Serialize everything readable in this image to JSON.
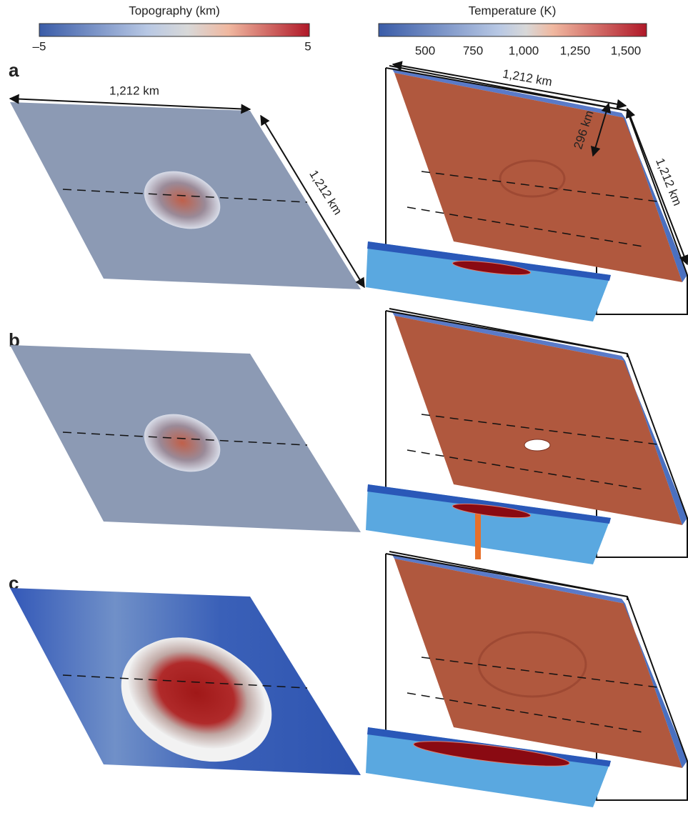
{
  "colorbars": [
    {
      "title": "Topography (km)",
      "tick_labels": [
        "–5",
        "5"
      ]
    },
    {
      "title": "Temperature (K)",
      "tick_labels": [
        "500",
        "750",
        "1,000",
        "1,250",
        "1,500"
      ]
    }
  ],
  "panels": [
    {
      "label": "a",
      "topo_width": "1,212 km",
      "topo_depth": "1,212 km",
      "temp_width": "1,212 km",
      "temp_thickness": "296 km",
      "temp_depth": "1,212 km"
    },
    {
      "label": "b"
    },
    {
      "label": "c"
    }
  ]
}
